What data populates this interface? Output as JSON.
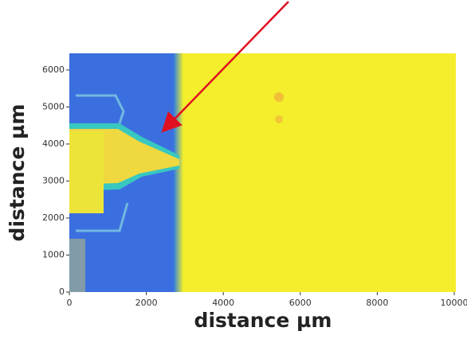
{
  "chart_data": {
    "type": "image",
    "xlabel": "distance µm",
    "ylabel": "distance µm",
    "xlim": [
      0,
      10000
    ],
    "ylim": [
      0,
      6450
    ],
    "xticks": [
      0,
      2000,
      4000,
      6000,
      8000,
      10000
    ],
    "yticks": [
      0,
      1000,
      2000,
      3000,
      4000,
      5000,
      6000
    ]
  }
}
